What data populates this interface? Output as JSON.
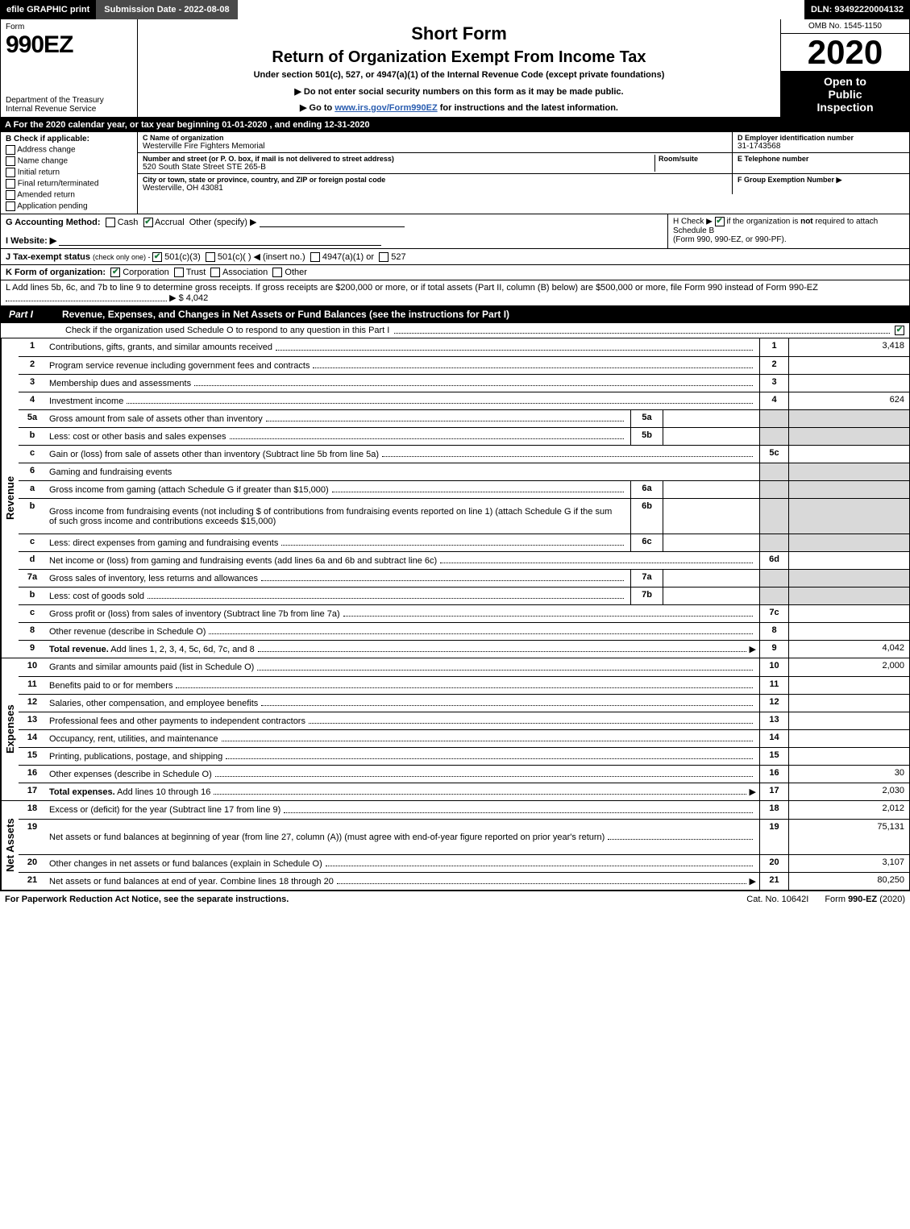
{
  "topbar": {
    "efile": "efile GRAPHIC print",
    "submission": "Submission Date - 2022-08-08",
    "dln": "DLN: 93492220004132"
  },
  "header": {
    "form_word": "Form",
    "form_code": "990EZ",
    "dept1": "Department of the Treasury",
    "dept2": "Internal Revenue Service",
    "shortform": "Short Form",
    "title": "Return of Organization Exempt From Income Tax",
    "sub": "Under section 501(c), 527, or 4947(a)(1) of the Internal Revenue Code (except private foundations)",
    "note": "▶ Do not enter social security numbers on this form as it may be made public.",
    "link_pre": "▶ Go to ",
    "link_url": "www.irs.gov/Form990EZ",
    "link_post": " for instructions and the latest information.",
    "omb": "OMB No. 1545-1150",
    "year": "2020",
    "open1": "Open to",
    "open2": "Public",
    "open3": "Inspection"
  },
  "line_a": "A For the 2020 calendar year, or tax year beginning 01-01-2020 , and ending 12-31-2020",
  "col_b": {
    "title": "B  Check if applicable:",
    "opts": [
      "Address change",
      "Name change",
      "Initial return",
      "Final return/terminated",
      "Amended return",
      "Application pending"
    ]
  },
  "col_c": {
    "name_label": "C Name of organization",
    "name": "Westerville Fire Fighters Memorial",
    "street_label": "Number and street (or P. O. box, if mail is not delivered to street address)",
    "room_label": "Room/suite",
    "street": "520 South State Street STE 265-B",
    "city_label": "City or town, state or province, country, and ZIP or foreign postal code",
    "city": "Westerville, OH  43081"
  },
  "col_d": {
    "ein_label": "D Employer identification number",
    "ein": "31-1743568",
    "tel_label": "E Telephone number",
    "tel": "",
    "group_label": "F Group Exemption Number  ▶",
    "group": ""
  },
  "row_g": {
    "label": "G Accounting Method:",
    "cash": "Cash",
    "accrual": "Accrual",
    "other": "Other (specify) ▶"
  },
  "row_h": {
    "text1": "H  Check ▶ ",
    "text2": " if the organization is ",
    "not": "not",
    "text3": " required to attach Schedule B",
    "text4": "(Form 990, 990-EZ, or 990-PF)."
  },
  "row_i": {
    "label": "I Website: ▶"
  },
  "row_j": {
    "label": "J Tax-exempt status",
    "note": "(check only one) - ",
    "a": "501(c)(3)",
    "b": "501(c)(   ) ◀ (insert no.)",
    "c": "4947(a)(1) or",
    "d": "527"
  },
  "row_k": {
    "label": "K Form of organization:",
    "opts": [
      "Corporation",
      "Trust",
      "Association",
      "Other"
    ]
  },
  "row_l": {
    "text": "L Add lines 5b, 6c, and 7b to line 9 to determine gross receipts. If gross receipts are $200,000 or more, or if total assets (Part II, column (B) below) are $500,000 or more, file Form 990 instead of Form 990-EZ",
    "amount": "▶ $ 4,042"
  },
  "part1": {
    "label": "Part I",
    "title": "Revenue, Expenses, and Changes in Net Assets or Fund Balances (see the instructions for Part I)",
    "sub": "Check if the organization used Schedule O to respond to any question in this Part I"
  },
  "vtabs": {
    "revenue": "Revenue",
    "expenses": "Expenses",
    "netassets": "Net Assets"
  },
  "revenue_lines": [
    {
      "n": "1",
      "d": "Contributions, gifts, grants, and similar amounts received",
      "rn": "1",
      "rv": "3,418"
    },
    {
      "n": "2",
      "d": "Program service revenue including government fees and contracts",
      "rn": "2",
      "rv": ""
    },
    {
      "n": "3",
      "d": "Membership dues and assessments",
      "rn": "3",
      "rv": ""
    },
    {
      "n": "4",
      "d": "Investment income",
      "rn": "4",
      "rv": "624"
    },
    {
      "n": "5a",
      "d": "Gross amount from sale of assets other than inventory",
      "sc": "5a",
      "sv": "",
      "shaded": true
    },
    {
      "n": "b",
      "d": "Less: cost or other basis and sales expenses",
      "sc": "5b",
      "sv": "",
      "shaded": true
    },
    {
      "n": "c",
      "d": "Gain or (loss) from sale of assets other than inventory (Subtract line 5b from line 5a)",
      "rn": "5c",
      "rv": ""
    },
    {
      "n": "6",
      "d": "Gaming and fundraising events",
      "shadedall": true
    },
    {
      "n": "a",
      "d": "Gross income from gaming (attach Schedule G if greater than $15,000)",
      "sc": "6a",
      "sv": "",
      "shaded": true
    },
    {
      "n": "b",
      "d": "Gross income from fundraising events (not including $               of contributions from fundraising events reported on line 1) (attach Schedule G if the sum of such gross income and contributions exceeds $15,000)",
      "sc": "6b",
      "sv": "",
      "shaded": true,
      "tall": true
    },
    {
      "n": "c",
      "d": "Less: direct expenses from gaming and fundraising events",
      "sc": "6c",
      "sv": "",
      "shaded": true
    },
    {
      "n": "d",
      "d": "Net income or (loss) from gaming and fundraising events (add lines 6a and 6b and subtract line 6c)",
      "rn": "6d",
      "rv": ""
    },
    {
      "n": "7a",
      "d": "Gross sales of inventory, less returns and allowances",
      "sc": "7a",
      "sv": "",
      "shaded": true
    },
    {
      "n": "b",
      "d": "Less: cost of goods sold",
      "sc": "7b",
      "sv": "",
      "shaded": true
    },
    {
      "n": "c",
      "d": "Gross profit or (loss) from sales of inventory (Subtract line 7b from line 7a)",
      "rn": "7c",
      "rv": ""
    },
    {
      "n": "8",
      "d": "Other revenue (describe in Schedule O)",
      "rn": "8",
      "rv": ""
    },
    {
      "n": "9",
      "d": "Total revenue. Add lines 1, 2, 3, 4, 5c, 6d, 7c, and 8",
      "rn": "9",
      "rv": "4,042",
      "bold": true,
      "arrow": true
    }
  ],
  "expense_lines": [
    {
      "n": "10",
      "d": "Grants and similar amounts paid (list in Schedule O)",
      "rn": "10",
      "rv": "2,000"
    },
    {
      "n": "11",
      "d": "Benefits paid to or for members",
      "rn": "11",
      "rv": ""
    },
    {
      "n": "12",
      "d": "Salaries, other compensation, and employee benefits",
      "rn": "12",
      "rv": ""
    },
    {
      "n": "13",
      "d": "Professional fees and other payments to independent contractors",
      "rn": "13",
      "rv": ""
    },
    {
      "n": "14",
      "d": "Occupancy, rent, utilities, and maintenance",
      "rn": "14",
      "rv": ""
    },
    {
      "n": "15",
      "d": "Printing, publications, postage, and shipping",
      "rn": "15",
      "rv": ""
    },
    {
      "n": "16",
      "d": "Other expenses (describe in Schedule O)",
      "rn": "16",
      "rv": "30"
    },
    {
      "n": "17",
      "d": "Total expenses. Add lines 10 through 16",
      "rn": "17",
      "rv": "2,030",
      "bold": true,
      "arrow": true
    }
  ],
  "netasset_lines": [
    {
      "n": "18",
      "d": "Excess or (deficit) for the year (Subtract line 17 from line 9)",
      "rn": "18",
      "rv": "2,012"
    },
    {
      "n": "19",
      "d": "Net assets or fund balances at beginning of year (from line 27, column (A)) (must agree with end-of-year figure reported on prior year's return)",
      "rn": "19",
      "rv": "75,131",
      "tall": true
    },
    {
      "n": "20",
      "d": "Other changes in net assets or fund balances (explain in Schedule O)",
      "rn": "20",
      "rv": "3,107"
    },
    {
      "n": "21",
      "d": "Net assets or fund balances at end of year. Combine lines 18 through 20",
      "rn": "21",
      "rv": "80,250",
      "arrow": true
    }
  ],
  "footer": {
    "left": "For Paperwork Reduction Act Notice, see the separate instructions.",
    "mid": "Cat. No. 10642I",
    "right_pre": "Form ",
    "right_bold": "990-EZ",
    "right_post": " (2020)"
  },
  "colors": {
    "black": "#000000",
    "white": "#ffffff",
    "darkgrey": "#4a4a4a",
    "shade": "#d9d9d9",
    "link": "#2a5db0",
    "check": "#1a7a3a"
  }
}
